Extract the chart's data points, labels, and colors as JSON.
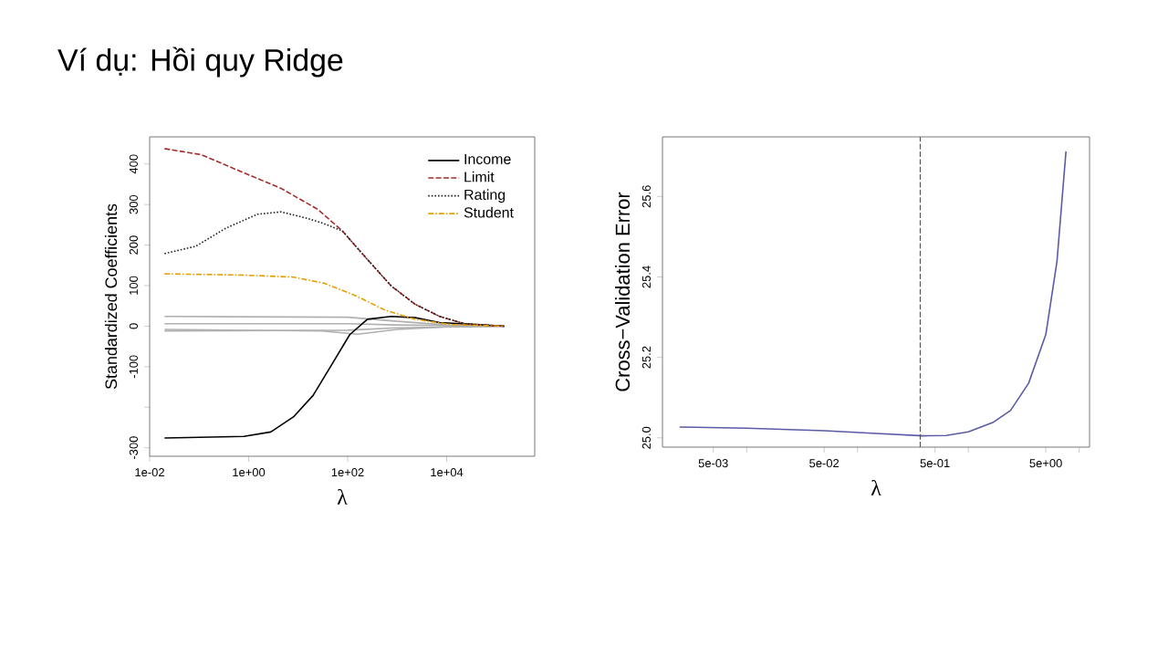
{
  "chart_data": [
    {
      "type": "line",
      "title": "Ví dụ: Hồi quy Ridge",
      "xlabel": "λ",
      "ylabel": "Standardized Coefficients",
      "log": "x",
      "legend": "top right",
      "xlim": [
        0.01,
        600000
      ],
      "ylim": [
        -321,
        467
      ],
      "xticks": [
        {
          "value": 0.01,
          "label": "1e-02"
        },
        {
          "value": 1,
          "label": "1e+00"
        },
        {
          "value": 100,
          "label": "1e+02"
        },
        {
          "value": 10000,
          "label": "1e+04"
        }
      ],
      "yticks": [
        -300,
        {
          "value": -200,
          "label": null
        },
        -100,
        0,
        100,
        200,
        300,
        400
      ],
      "series": [
        {
          "color": "#b0b0b0",
          "line_style": "solid",
          "x": [
            0.02,
            100,
            1000,
            10000,
            145000
          ],
          "values": [
            24,
            22,
            12,
            3,
            0
          ]
        },
        {
          "color": "#b0b0b0",
          "line_style": "solid",
          "x": [
            0.02,
            100,
            1000,
            145000
          ],
          "values": [
            6,
            6,
            3,
            0
          ]
        },
        {
          "color": "#b0b0b0",
          "line_style": "solid",
          "x": [
            0.02,
            30,
            160,
            1000,
            10000,
            145000
          ],
          "values": [
            -8,
            -12,
            -20,
            -8,
            -2,
            0
          ]
        },
        {
          "color": "#b0b0b0",
          "line_style": "solid",
          "x": [
            0.02,
            100,
            1000,
            145000
          ],
          "values": [
            -12,
            -10,
            -4,
            0
          ]
        },
        {
          "name": "Income",
          "color": "#000000",
          "line_style": "solid",
          "x": [
            0.02,
            0.8,
            2.8,
            8,
            20,
            47,
            110,
            250,
            760,
            2300,
            7200,
            145000
          ],
          "values": [
            -276,
            -272,
            -261,
            -224,
            -171,
            -96,
            -21,
            17,
            24,
            21,
            9,
            0
          ]
        },
        {
          "name": "Limit",
          "color": "#a52a2a",
          "line_style": "dashed",
          "x": [
            0.02,
            0.11,
            0.81,
            4.5,
            25,
            78,
            240,
            760,
            2300,
            7200,
            23000,
            145000
          ],
          "values": [
            438,
            423,
            378,
            340,
            288,
            235,
            167,
            99,
            54,
            24,
            6,
            0
          ]
        },
        {
          "name": "Rating",
          "color": "#222222",
          "line_style": "dotted",
          "x": [
            0.02,
            0.085,
            0.35,
            1.5,
            4.5,
            14,
            30,
            78,
            240,
            760,
            2300,
            7200,
            23000,
            145000
          ],
          "values": [
            179,
            197,
            242,
            276,
            282,
            267,
            255,
            235,
            167,
            99,
            54,
            24,
            6,
            0
          ]
        },
        {
          "name": "Student",
          "color": "#e69f00",
          "line_style": "dashdot",
          "x": [
            0.02,
            0.8,
            8,
            33,
            140,
            580,
            2300,
            12000,
            145000
          ],
          "values": [
            129,
            126,
            121,
            106,
            76,
            39,
            17,
            4,
            0
          ]
        }
      ]
    },
    {
      "type": "line",
      "xlabel": "λ",
      "ylabel": "Cross−Validation Error",
      "log": "x",
      "xlim": [
        0.00174,
        12.4
      ],
      "ylim": [
        24.977,
        25.748
      ],
      "xticks": [
        {
          "value": 0.005,
          "label": "5e-03"
        },
        {
          "value": 0.01,
          "label": null
        },
        {
          "value": 0.05,
          "label": "5e-02"
        },
        {
          "value": 0.1,
          "label": null
        },
        {
          "value": 0.5,
          "label": "5e-01"
        },
        {
          "value": 1,
          "label": null
        },
        {
          "value": 5,
          "label": "5e+00"
        },
        {
          "value": 10,
          "label": null
        }
      ],
      "yticks": [
        {
          "value": 25.0,
          "label": "25.0"
        },
        {
          "value": 25.2,
          "label": "25.2"
        },
        {
          "value": 25.4,
          "label": "25.4"
        },
        {
          "value": 25.6,
          "label": "25.6"
        }
      ],
      "ref_lines": [
        {
          "axis": "x",
          "value": 0.368,
          "color": "#555555",
          "line_style": "dashed"
        }
      ],
      "series": [
        {
          "color": "#5a5aa8",
          "line_style": "solid",
          "x": [
            0.00248,
            0.01,
            0.05,
            0.147,
            0.39,
            0.63,
            1.0,
            1.66,
            2.4,
            3.5,
            5.0,
            6.3,
            7.6
          ],
          "values": [
            25.027,
            25.024,
            25.018,
            25.011,
            25.005,
            25.006,
            25.015,
            25.038,
            25.068,
            25.136,
            25.257,
            25.438,
            25.712
          ]
        }
      ]
    }
  ]
}
